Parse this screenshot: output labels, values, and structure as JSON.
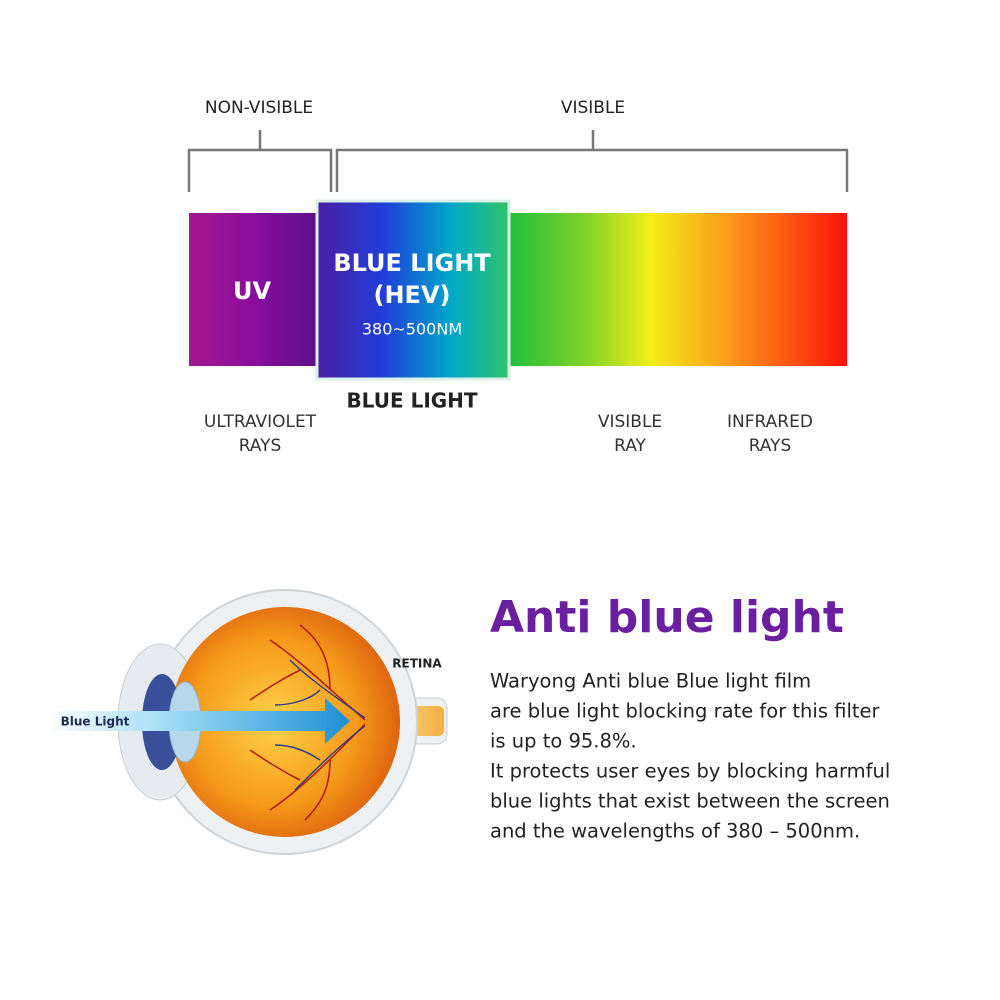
{
  "spectrum": {
    "brackets": {
      "non_visible": "NON-VISIBLE",
      "visible": "VISIBLE"
    },
    "uv": "UV",
    "blue_box": {
      "lines": [
        "BLUE LIGHT",
        "(HEV)"
      ],
      "range": "380~500NM"
    },
    "blue_caption": "BLUE LIGHT",
    "labels": [
      {
        "lines": [
          "ULTRAVIOLET",
          "RAYS"
        ]
      },
      {
        "lines": [
          "VISIBLE",
          "RAY"
        ]
      },
      {
        "lines": [
          "INFRARED",
          "RAYS"
        ]
      }
    ]
  },
  "eye": {
    "retina": "RETINA",
    "arrow": "Blue Light"
  },
  "text": {
    "heading": "Anti blue light",
    "lines": [
      "Waryong Anti blue Blue light film",
      "are blue light blocking rate for this filter",
      "is up to 95.8%.",
      "It protects user eyes by blocking harmful",
      "blue lights that exist between the screen",
      "and the wavelengths of 380 – 500nm."
    ]
  }
}
